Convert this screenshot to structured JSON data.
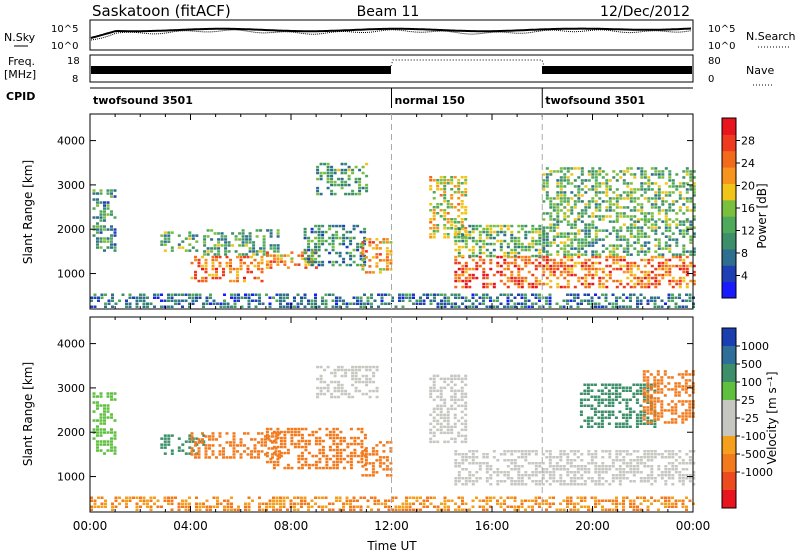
{
  "header": {
    "station": "Saskatoon (fitACF)",
    "beam": "Beam 11",
    "date": "12/Dec/2012"
  },
  "labels": {
    "nsky": "N.Sky",
    "nsearch": "N.Search",
    "freq_line1": "Freq.",
    "freq_line2": "[MHz]",
    "nave": "Nave",
    "cpid": "CPID"
  },
  "noise_axis": {
    "left_ticks": [
      "10^5",
      "10^0"
    ],
    "right_ticks": [
      "10^5",
      "10^0"
    ]
  },
  "freq_axis": {
    "left_ticks": [
      "18",
      "8"
    ],
    "right_ticks": [
      "80",
      "0"
    ]
  },
  "cpid_segments": [
    {
      "label": "twofsound 3501",
      "start_hour": 0
    },
    {
      "label": "normal 150",
      "start_hour": 12
    },
    {
      "label": "twofsound 3501",
      "start_hour": 18
    }
  ],
  "colors": {
    "power_scale": [
      "#1a1aff",
      "#1f3fb5",
      "#2e6e8e",
      "#3d8f6a",
      "#4fa95a",
      "#7bbf3e",
      "#f0c419",
      "#f7941d",
      "#f26b1d",
      "#ee3a1f",
      "#e8141e"
    ],
    "velocity_scale": [
      "#1a3fb0",
      "#2e6f9a",
      "#3d8f6a",
      "#5fbf3e",
      "#c7c7c2",
      "#c7c7c2",
      "#f5a01d",
      "#f27a1d",
      "#ee4a1f",
      "#e8141e"
    ]
  },
  "chart_data": [
    {
      "type": "heatmap",
      "name": "power-panel",
      "ylabel": "Slant Range [km]",
      "xlabel": "",
      "xlim": [
        0,
        24
      ],
      "ylim": [
        200,
        4600
      ],
      "y_ticks": [
        1000,
        2000,
        3000,
        4000
      ],
      "colorbar": {
        "label": "Power [dB]",
        "ticks": [
          4,
          8,
          12,
          16,
          20,
          24,
          28
        ],
        "range": [
          0,
          32
        ]
      },
      "echo_regions": [
        {
          "t0": 0.1,
          "t1": 1.0,
          "r0": 1500,
          "r1": 2900,
          "value": 10
        },
        {
          "t0": 2.8,
          "t1": 4.2,
          "r0": 1500,
          "r1": 1950,
          "value": 13
        },
        {
          "t0": 4.0,
          "t1": 6.9,
          "r0": 800,
          "r1": 1400,
          "value": 24
        },
        {
          "t0": 4.5,
          "t1": 7.5,
          "r0": 1400,
          "r1": 2000,
          "value": 12
        },
        {
          "t0": 7.0,
          "t1": 9.0,
          "r0": 1100,
          "r1": 1500,
          "value": 22
        },
        {
          "t0": 8.5,
          "t1": 11.0,
          "r0": 1200,
          "r1": 2100,
          "value": 10
        },
        {
          "t0": 9.0,
          "t1": 11.0,
          "r0": 2800,
          "r1": 3500,
          "value": 12
        },
        {
          "t0": 10.8,
          "t1": 12.0,
          "r0": 1000,
          "r1": 1800,
          "value": 22
        },
        {
          "t0": 13.5,
          "t1": 15.0,
          "r0": 1800,
          "r1": 3200,
          "value": 18
        },
        {
          "t0": 14.5,
          "t1": 18.0,
          "r0": 700,
          "r1": 1400,
          "value": 26
        },
        {
          "t0": 14.5,
          "t1": 18.0,
          "r0": 1400,
          "r1": 2100,
          "value": 14
        },
        {
          "t0": 18.0,
          "t1": 24.0,
          "r0": 700,
          "r1": 1400,
          "value": 24
        },
        {
          "t0": 18.0,
          "t1": 24.0,
          "r0": 1400,
          "r1": 2200,
          "value": 12
        },
        {
          "t0": 18.0,
          "t1": 24.0,
          "r0": 2200,
          "r1": 3400,
          "value": 14
        },
        {
          "t0": 0.0,
          "t1": 24.0,
          "r0": 250,
          "r1": 550,
          "value": 8
        }
      ]
    },
    {
      "type": "heatmap",
      "name": "velocity-panel",
      "ylabel": "Slant Range [km]",
      "xlabel": "Time UT",
      "xlim": [
        0,
        24
      ],
      "ylim": [
        200,
        4600
      ],
      "y_ticks": [
        1000,
        2000,
        3000,
        4000
      ],
      "x_ticks": [
        "00:00",
        "04:00",
        "08:00",
        "12:00",
        "16:00",
        "20:00",
        "00:00"
      ],
      "colorbar": {
        "label": "Velocity [m s⁻¹]",
        "ticks": [
          1000,
          500,
          100,
          25,
          -25,
          -100,
          -500,
          -1000
        ]
      },
      "echo_regions": [
        {
          "t0": 0.1,
          "t1": 1.0,
          "r0": 1500,
          "r1": 2900,
          "value": 50
        },
        {
          "t0": 2.8,
          "t1": 4.5,
          "r0": 1500,
          "r1": 1950,
          "value": 200
        },
        {
          "t0": 4.0,
          "t1": 7.5,
          "r0": 1400,
          "r1": 2000,
          "value": -300
        },
        {
          "t0": 7.0,
          "t1": 11.0,
          "r0": 1200,
          "r1": 2100,
          "value": -200
        },
        {
          "t0": 9.0,
          "t1": 11.5,
          "r0": 2800,
          "r1": 3500,
          "value": 0
        },
        {
          "t0": 10.8,
          "t1": 12.0,
          "r0": 1000,
          "r1": 1800,
          "value": -400
        },
        {
          "t0": 13.5,
          "t1": 15.0,
          "r0": 1800,
          "r1": 3300,
          "value": 0
        },
        {
          "t0": 14.5,
          "t1": 24.0,
          "r0": 800,
          "r1": 1600,
          "value": 0
        },
        {
          "t0": 19.5,
          "t1": 22.5,
          "r0": 2100,
          "r1": 3100,
          "value": 300
        },
        {
          "t0": 22.0,
          "t1": 24.0,
          "r0": 2200,
          "r1": 3400,
          "value": -150
        },
        {
          "t0": 0.0,
          "t1": 24.0,
          "r0": 250,
          "r1": 550,
          "value": -100
        }
      ]
    }
  ]
}
